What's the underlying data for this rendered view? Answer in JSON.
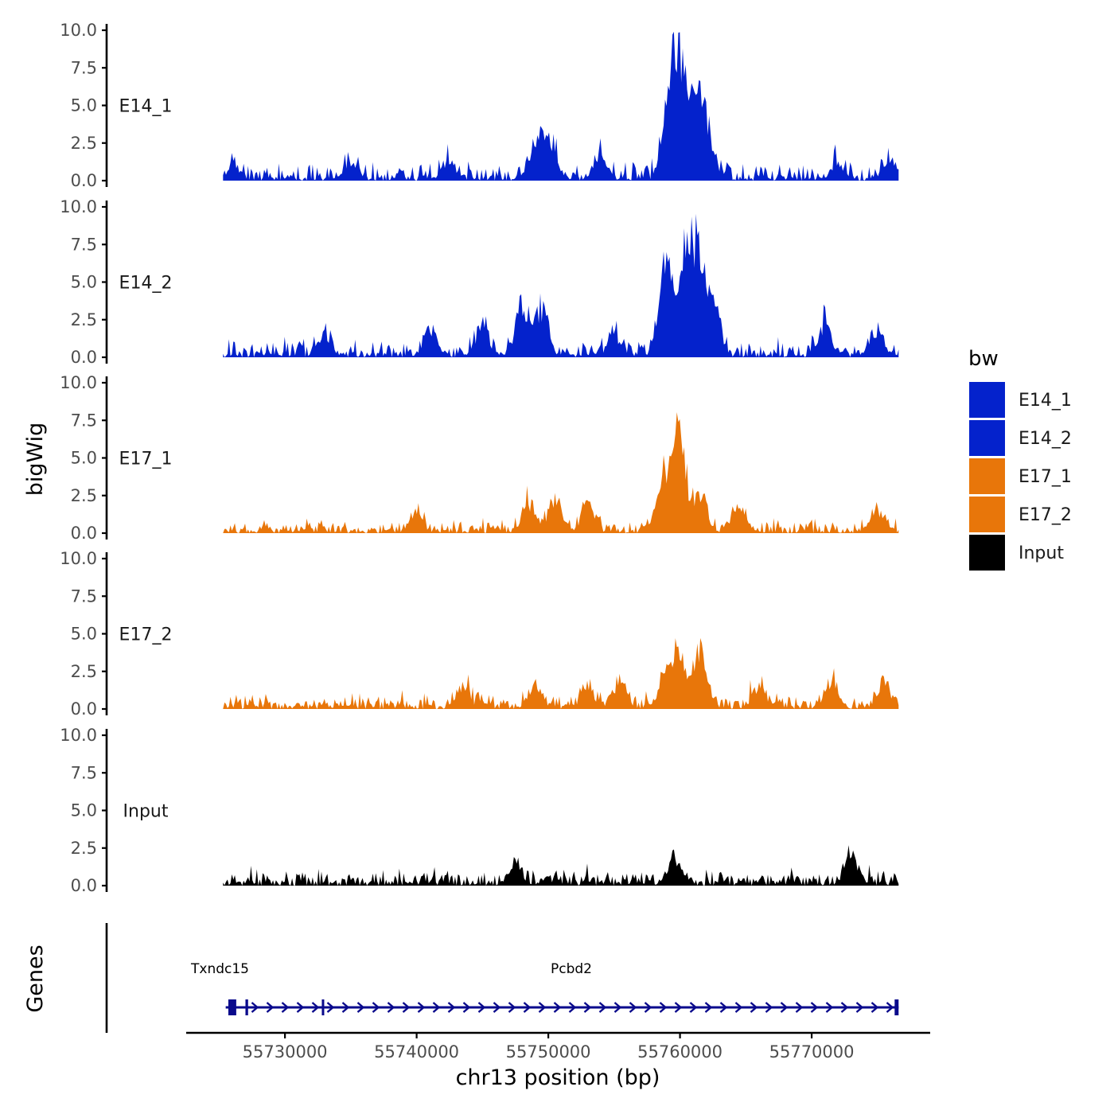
{
  "colors": {
    "blue": "#0422cc",
    "orange": "#e8760a",
    "black": "#000000",
    "gene": "#0a0a8c",
    "axis": "#000000"
  },
  "chart_data": {
    "type": "area",
    "title": "",
    "xlabel": "chr13 position (bp)",
    "ylabel": "bigWig",
    "gene_panel_label": "Genes",
    "xlim": [
      55722500,
      55779000
    ],
    "x_ticks": [
      55730000,
      55740000,
      55750000,
      55760000,
      55770000
    ],
    "x_tick_labels": [
      "55730000",
      "55740000",
      "55750000",
      "55760000",
      "55770000"
    ],
    "data_range": [
      55725300,
      55776600
    ],
    "ylim": [
      0,
      10
    ],
    "y_ticks": [
      0,
      2.5,
      5,
      7.5,
      10
    ],
    "y_tick_labels": [
      "0.0",
      "2.5",
      "5.0",
      "7.5",
      "10.0"
    ],
    "legend": {
      "title": "bw",
      "entries": [
        {
          "label": "E14_1",
          "color": "#0422cc"
        },
        {
          "label": "E14_2",
          "color": "#0422cc"
        },
        {
          "label": "E17_1",
          "color": "#e8760a"
        },
        {
          "label": "E17_2",
          "color": "#e8760a"
        },
        {
          "label": "Input",
          "color": "#000000"
        }
      ]
    },
    "series": [
      {
        "name": "E14_1",
        "color": "#0422cc",
        "seed": 11,
        "base": 0.45,
        "noise": 1.1,
        "peaks": [
          [
            55726000,
            0.9
          ],
          [
            55735000,
            1.3
          ],
          [
            55742500,
            1.4
          ],
          [
            55749000,
            2.8
          ],
          [
            55750000,
            3.5
          ],
          [
            55754000,
            2.0
          ],
          [
            55759200,
            6.5
          ],
          [
            55760000,
            8.8
          ],
          [
            55761200,
            6.2
          ],
          [
            55762000,
            3.5
          ],
          [
            55772000,
            1.2
          ],
          [
            55776000,
            1.6
          ]
        ]
      },
      {
        "name": "E14_2",
        "color": "#0422cc",
        "seed": 23,
        "base": 0.55,
        "noise": 1.0,
        "peaks": [
          [
            55733000,
            1.7
          ],
          [
            55741000,
            2.1
          ],
          [
            55745000,
            2.6
          ],
          [
            55748000,
            4.2
          ],
          [
            55749500,
            3.7
          ],
          [
            55755000,
            1.7
          ],
          [
            55759000,
            9.5
          ],
          [
            55760500,
            8.0
          ],
          [
            55761500,
            7.5
          ],
          [
            55762500,
            4.0
          ],
          [
            55771000,
            2.3
          ],
          [
            55775000,
            1.9
          ]
        ]
      },
      {
        "name": "E17_1",
        "color": "#e8760a",
        "seed": 37,
        "base": 0.7,
        "noise": 0.7,
        "peaks": [
          [
            55740000,
            1.4
          ],
          [
            55748500,
            2.4
          ],
          [
            55750500,
            2.6
          ],
          [
            55753000,
            1.9
          ],
          [
            55758500,
            3.0
          ],
          [
            55759500,
            4.2
          ],
          [
            55760000,
            5.5
          ],
          [
            55761500,
            3.2
          ],
          [
            55764500,
            1.9
          ],
          [
            55775000,
            1.7
          ]
        ]
      },
      {
        "name": "E17_2",
        "color": "#e8760a",
        "seed": 53,
        "base": 0.75,
        "noise": 0.75,
        "peaks": [
          [
            55743500,
            1.8
          ],
          [
            55749000,
            1.6
          ],
          [
            55753000,
            1.6
          ],
          [
            55755500,
            1.9
          ],
          [
            55759000,
            3.0
          ],
          [
            55760000,
            3.8
          ],
          [
            55761500,
            4.6
          ],
          [
            55766000,
            1.6
          ],
          [
            55771500,
            1.9
          ],
          [
            55775500,
            2.0
          ]
        ]
      },
      {
        "name": "Input",
        "color": "#000000",
        "seed": 71,
        "base": 0.75,
        "noise": 0.75,
        "peaks": [
          [
            55747500,
            1.9
          ],
          [
            55759500,
            1.8
          ],
          [
            55773000,
            2.4
          ]
        ]
      }
    ],
    "genes": [
      {
        "name": "Txndc15",
        "start": 55725500,
        "end": 55727000,
        "exons": [
          [
            55725700,
            55726300
          ]
        ]
      },
      {
        "name": "Pcbd2",
        "start": 55727000,
        "end": 55776600,
        "exons": [
          [
            55727000,
            55727200
          ],
          [
            55732800,
            55732950
          ],
          [
            55776300,
            55776600
          ]
        ]
      }
    ]
  }
}
